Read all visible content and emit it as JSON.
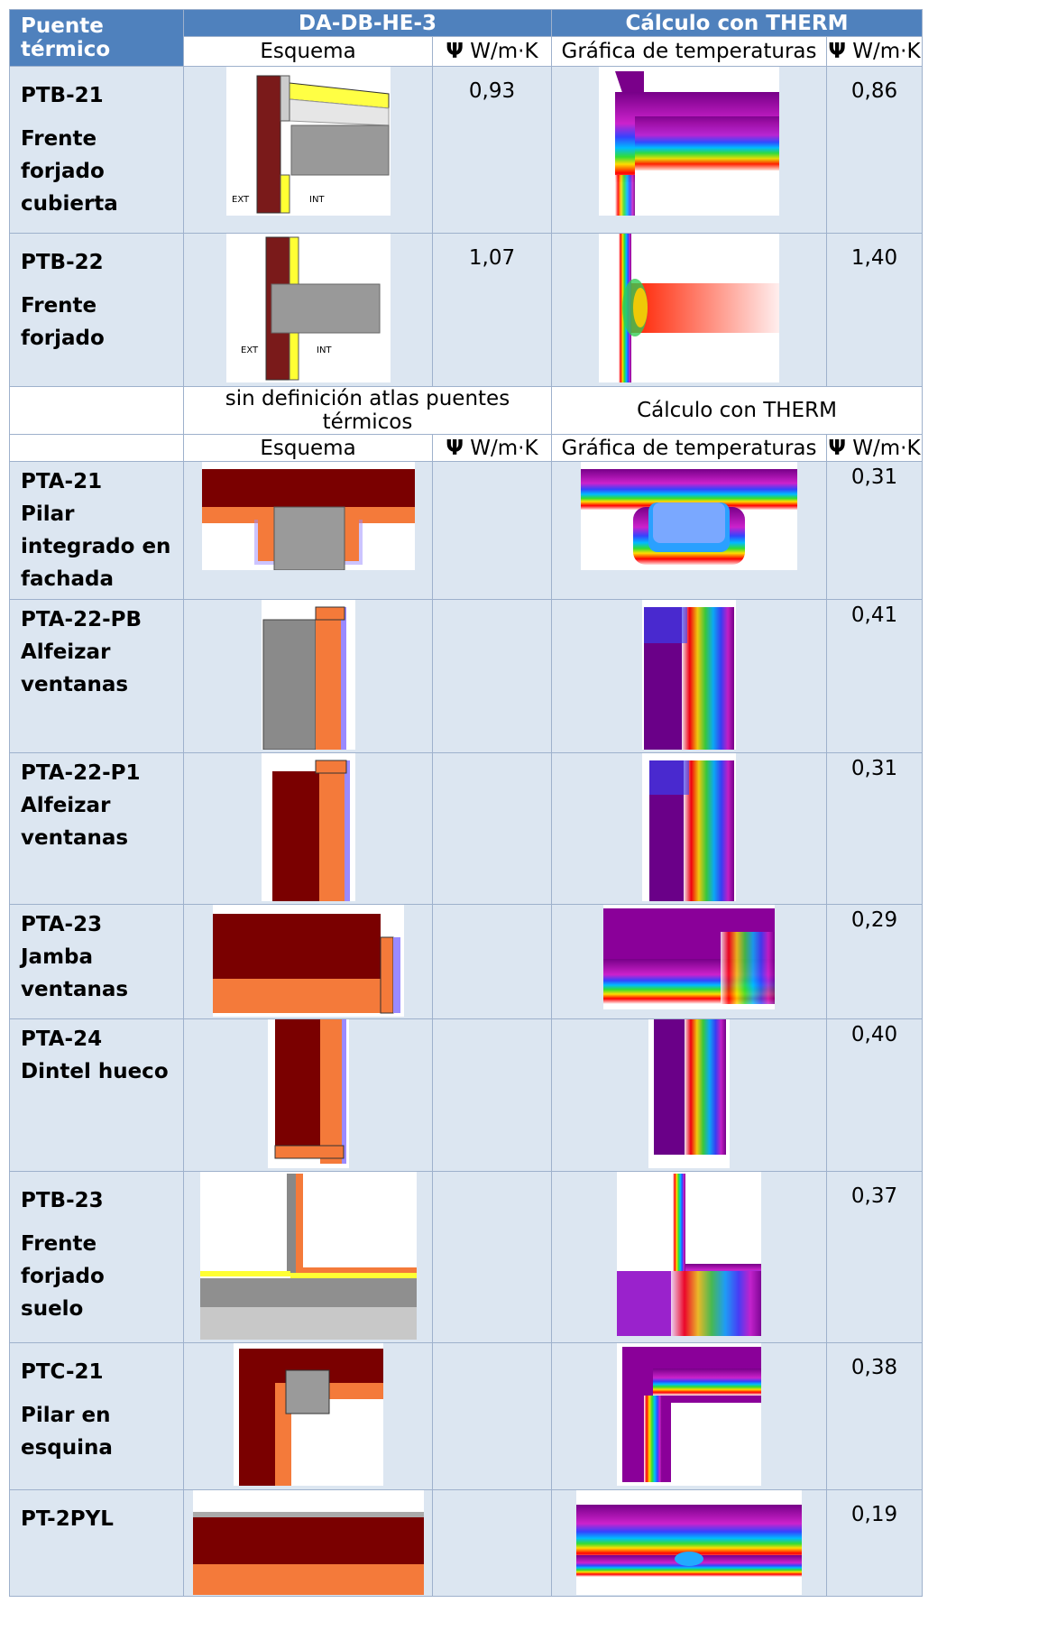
{
  "header": {
    "col_label": "Puente térmico",
    "group1": "DA-DB-HE-3",
    "group2": "Cálculo con THERM",
    "schema": "Esquema",
    "psi_symbol": "Ψ",
    "psi_unit": "W/m·K",
    "graph": "Gráfica de temperaturas"
  },
  "section2": {
    "left": "sin definición atlas puentes térmicos",
    "right": "Cálculo con THERM",
    "schema": "Esquema",
    "graph": "Gráfica de temperaturas"
  },
  "rows": [
    {
      "code": "PTB-21",
      "name": "Frente forjado cubierta",
      "psi_db": "0,93",
      "psi_therm": "0,86"
    },
    {
      "code": "PTB-22",
      "name": "Frente forjado",
      "psi_db": "1,07",
      "psi_therm": "1,40"
    },
    {
      "code": "PTA-21",
      "name": "Pilar integrado en fachada",
      "psi_db": "",
      "psi_therm": "0,31"
    },
    {
      "code": "PTA-22-PB",
      "name": "Alfeizar ventanas",
      "psi_db": "",
      "psi_therm": "0,41"
    },
    {
      "code": "PTA-22-P1",
      "name": "Alfeizar ventanas",
      "psi_db": "",
      "psi_therm": "0,31"
    },
    {
      "code": "PTA-23",
      "name": "Jamba ventanas",
      "psi_db": "",
      "psi_therm": "0,29"
    },
    {
      "code": "PTA-24",
      "name": "Dintel hueco",
      "psi_db": "",
      "psi_therm": "0,40"
    },
    {
      "code": "PTB-23",
      "name": "Frente forjado suelo",
      "psi_db": "",
      "psi_therm": "0,37"
    },
    {
      "code": "PTC-21",
      "name": "Pilar en esquina",
      "psi_db": "",
      "psi_therm": "0,38"
    },
    {
      "code": "PT-2PYL",
      "name": "",
      "psi_db": "",
      "psi_therm": "0,19"
    }
  ],
  "diagram_labels": {
    "ext": "EXT",
    "int": "INT"
  },
  "colors": {
    "header_bg": "#4f81bd",
    "band_bg": "#dce6f1",
    "brick": "#7a0000",
    "insulation": "#f47a3a",
    "concrete": "#9a9a9a",
    "yellow": "#ffff00"
  }
}
